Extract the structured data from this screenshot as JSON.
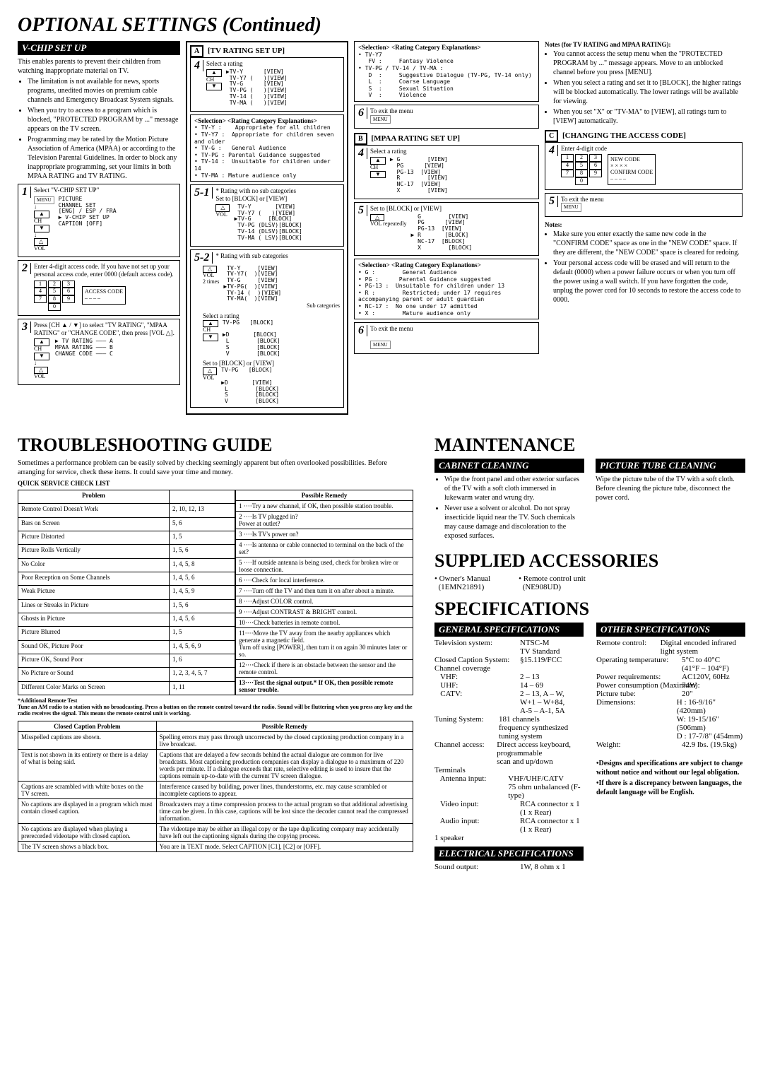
{
  "title_main": "OPTIONAL SETTINGS (Continued)",
  "vchip": {
    "heading": "V-CHIP SET UP",
    "intro1": "This enables parents to prevent their children from watching inappropriate material on TV.",
    "bullets": [
      "The limitation is not available for news, sports programs, unedited movies on premium cable channels and Emergency Broadcast System signals.",
      "When you try to access to a program which is blocked, \"PROTECTED PROGRAM by ...\" message appears on the TV screen.",
      "Programming may be rated by the Motion Picture Association of America (MPAA) or according to the Television Parental Guidelines. In order to block any inappropriate programming, set your limits in both MPAA RATING and TV RATING."
    ],
    "step1": "Select \"V-CHIP SET UP\"",
    "step1_menu": "PICTURE\nCHANNEL SET\n[ENG] / ESP / FRA\n▶ V-CHIP SET UP\nCAPTION [OFF]",
    "step2": "Enter 4-digit access code. If you have not set up your personal access code, enter 0000 (default access code).",
    "step2_label": "ACCESS CODE",
    "step3": "Press [CH ▲ / ▼] to select \"TV RATING\", \"MPAA RATING\" or \"CHANGE CODE\", then press [VOL △].",
    "step3_menu": "▶ TV RATING ——— A\nMPAA RATING ——— B\nCHANGE CODE ——— C"
  },
  "boxA": {
    "label": "A",
    "title": "[TV RATING SET UP]",
    "s4": "Select a rating",
    "s4_list": "▶TV-Y      [VIEW]\n TV-Y7 (   )[VIEW]\n TV-G      [VIEW]\n TV-PG (   )[VIEW]\n TV-14 (   )[VIEW]\n TV-MA (   )[VIEW]",
    "expl_head": "<Selection>  <Rating Category Explanations>",
    "expl": "• TV-Y :    Appropriate for all children\n• TV-Y7 :  Appropriate for children seven and older\n• TV-G :   General Audience\n• TV-PG : Parental Guidance suggested\n• TV-14 :  Unsuitable for children under 14\n• TV-MA : Mature audience only",
    "s51_label": "5-1",
    "s51": "* Rating with no sub categories\nSet to [BLOCK] or [VIEW]",
    "s51_list": " TV-Y       [VIEW]\n TV-Y7 (   )[VIEW]\n▶TV-G     [BLOCK]\n TV-PG (DLSV)[BLOCK]\n TV-14 (DLSV)[BLOCK]\n TV-MA ( LSV)[BLOCK]",
    "s52_label": "5-2",
    "s52": "* Rating with sub categories",
    "s52_a": "2 times",
    "s52_a_list": " TV-Y     [VIEW]\n TV-Y7(  )[VIEW]\n TV-G     [VIEW]\n▶TV-PG(  )[VIEW]\n TV-14 (  )[VIEW]\n TV-MA(  )[VIEW]",
    "s52_sub": "Sub categories",
    "s52_b": "Select a rating",
    "s52_b_list": "TV-PG   [BLOCK]\n\n▶D       [BLOCK]\n L        [BLOCK]\n S        [BLOCK]\n V        [BLOCK]",
    "s52_c": "Set to [BLOCK] or [VIEW]",
    "s52_c_list": "TV-PG   [BLOCK]\n\n▶D       [VIEW]\n L        [BLOCK]\n S        [BLOCK]\n V        [BLOCK]"
  },
  "boxA2": {
    "expl_head": "<Selection>  <Rating Category Explanations>",
    "expl": "• TV-Y7\n   FV :     Fantasy Violence\n• TV-PG / TV-14 / TV-MA :\n   D  :     Suggestive Dialogue (TV-PG, TV-14 only)\n   L  :     Coarse Language\n   S  :     Sexual Situation\n   V  :     Violence",
    "s6": "To exit the menu"
  },
  "boxB": {
    "label": "B",
    "title": "[MPAA RATING SET UP]",
    "s4": "Select a rating",
    "s4_list": "▶ G        [VIEW]\n  PG      [VIEW]\n  PG-13  [VIEW]\n  R        [VIEW]\n  NC-17  [VIEW]\n  X        [VIEW]",
    "s5": "Set to [BLOCK] or [VIEW]",
    "s5_note": "repeatedly",
    "s5_list": "  G        [VIEW]\n  PG      [VIEW]\n  PG-13  [VIEW]\n▶ R       [BLOCK]\n  NC-17  [BLOCK]\n  X        [BLOCK]",
    "expl_head": "<Selection>  <Rating Category Explanations>",
    "expl": "• G :        General Audience\n• PG :      Parental Guidance suggested\n• PG-13 :  Unsuitable for children under 13\n• R :        Restricted; under 17 requires accompanying parent or adult guardian\n• NC-17 :  No one under 17 admitted\n• X :        Mature audience only",
    "s6": "To exit the menu"
  },
  "boxC": {
    "label": "C",
    "title": "[CHANGING THE ACCESS CODE]",
    "s4": "Enter 4-digit code",
    "new_code": "NEW CODE",
    "confirm_code": "CONFIRM CODE",
    "s5": "To exit the menu"
  },
  "notes_tv": {
    "heading": "Notes (for TV RATING and MPAA RATING):",
    "items": [
      "You cannot access the setup menu when the \"PROTECTED PROGRAM by ...\" message appears. Move to an unblocked channel before you press [MENU].",
      "When you select a rating and set it to [BLOCK], the higher ratings will be blocked automatically. The lower ratings will be available for viewing.",
      "When you set \"X\" or \"TV-MA\" to [VIEW], all ratings turn to [VIEW] automatically."
    ]
  },
  "notes_code": {
    "heading": "Notes:",
    "items": [
      "Make sure you enter exactly the same new code in the \"CONFIRM CODE\" space as one in the \"NEW CODE\" space. If they are different, the \"NEW CODE\" space is cleared for redoing.",
      "Your personal access code will be erased and will return to the default (0000) when a power failure occurs or when you turn off the power using a wall switch. If you have forgotten the code, unplug the power cord for 10 seconds to restore the access code to 0000."
    ]
  },
  "trouble": {
    "heading": "TROUBLESHOOTING GUIDE",
    "intro": "Sometimes a performance problem can be easily solved by checking seemingly apparent but often overlooked possibilities. Before arranging for service, check these items. It could save your time and money.",
    "list_head": "QUICK SERVICE CHECK LIST",
    "th1": "Problem",
    "th2_empty": "",
    "th3": "Possible Remedy",
    "rows_left": [
      [
        "Remote Control Doesn't Work",
        "2, 10, 12, 13"
      ],
      [
        "Bars on Screen",
        "5, 6"
      ],
      [
        "Picture Distorted",
        "1, 5"
      ],
      [
        "Picture Rolls Vertically",
        "1, 5, 6"
      ],
      [
        "No Color",
        "1, 4, 5, 8"
      ],
      [
        "Poor Reception on Some Channels",
        "1, 4, 5, 6"
      ],
      [
        "Weak Picture",
        "1, 4, 5, 9"
      ],
      [
        "Lines or Streaks in Picture",
        "1, 5, 6"
      ],
      [
        "Ghosts in Picture",
        "1, 4, 5, 6"
      ],
      [
        "Picture Blurred",
        "1, 5"
      ],
      [
        "Sound OK, Picture Poor",
        "1, 4, 5, 6, 9"
      ],
      [
        "Picture OK, Sound Poor",
        "1, 6"
      ],
      [
        "No Picture or Sound",
        "1, 2, 3, 4, 5, 7"
      ],
      [
        "Different Color Marks on Screen",
        "1, 11"
      ]
    ],
    "remedies": [
      "1 ····Try a new channel, if OK, then possible station trouble.",
      "2 ····Is TV plugged in?\n       Power at outlet?",
      "3 ····Is TV's power on?",
      "4 ····Is antenna or cable connected to terminal on the back of the set?",
      "5 ····If outside antenna is being used, check for broken wire or loose connection.",
      "6 ····Check for local interference.",
      "7 ····Turn off the TV and then turn it on after about a minute.",
      "8 ····Adjust COLOR control.",
      "9 ····Adjust CONTRAST & BRIGHT control.",
      "10····Check batteries in remote control.",
      "11····Move the TV away from the nearby appliances which generate a magnetic field.\n       Turn off using [POWER], then turn it on again 30 minutes later or so.",
      "12····Check if there is an obstacle between the sensor and the remote control.",
      "13····Test the signal output.*  If OK, then possible remote sensor trouble."
    ],
    "foot_head": "*Additional Remote Test",
    "foot": "Tune an AM radio to a station with no broadcasting. Press a button on the remote control toward the radio. Sound will be fluttering when you press any key and the radio receives the signal. This means the remote control unit is working.",
    "cc_th1": "Closed Caption Problem",
    "cc_th2": "Possible Remedy",
    "cc_rows": [
      [
        "Misspelled captions are shown.",
        "Spelling errors may pass through uncorrected by the closed captioning production company in a live broadcast."
      ],
      [
        "Text is not shown in its entirety or there is a delay of what is being said.",
        "Captions that are delayed a few seconds behind the actual dialogue are common for live broadcasts. Most captioning production companies can display a dialogue to a maximum of 220 words per minute. If a dialogue exceeds that rate, selective editing is used to insure that the captions remain up-to-date with the current TV screen dialogue."
      ],
      [
        "Captions are scrambled with white boxes on the TV screen.",
        "Interference caused by building, power lines, thunderstorms, etc. may cause scrambled or incomplete captions to appear."
      ],
      [
        "No captions are displayed in a program which must contain closed caption.",
        "Broadcasters may  a time compression process to the actual program so that additional advertising time can be given. In this case, captions will be lost since the decoder cannot read the compressed information."
      ],
      [
        "No captions are displayed when playing a prerecorded videotape with closed caption.",
        "The videotape may be either an illegal copy or the tape duplicating company may accidentally have left out the captioning signals during the copying process."
      ],
      [
        "The TV screen shows a black box.",
        "You are in TEXT mode. Select CAPTION [C1], [C2] or [OFF]."
      ]
    ]
  },
  "maint": {
    "heading": "MAINTENANCE",
    "cab_head": "CABINET CLEANING",
    "cab": [
      "Wipe the front panel and other exterior surfaces of the TV with a soft cloth immersed in lukewarm water and wrung dry.",
      "Never use a solvent or alcohol. Do not spray insecticide liquid near the TV. Such chemicals may cause damage and discoloration to the exposed surfaces."
    ],
    "pic_head": "PICTURE TUBE CLEANING",
    "pic": "Wipe the picture tube of the TV with a soft cloth. Before cleaning the picture tube, disconnect the power cord."
  },
  "acc": {
    "heading": "SUPPLIED ACCESSORIES",
    "i1a": "Owner's Manual",
    "i1b": "(1EMN21891)",
    "i2a": "Remote control unit",
    "i2b": "(NE908UD)"
  },
  "specs": {
    "heading": "SPECIFICATIONS",
    "gen_head": "GENERAL SPECIFICATIONS",
    "gen": [
      [
        "Television system:",
        "NTSC-M\nTV Standard"
      ],
      [
        "Closed Caption System:",
        "§15.119/FCC"
      ],
      [
        "Channel coverage",
        ""
      ],
      [
        "   VHF:",
        "2 – 13"
      ],
      [
        "   UHF:",
        "14 – 69"
      ],
      [
        "   CATV:",
        "2 – 13, A – W,\nW+1 – W+84,\nA-5 – A-1, 5A"
      ],
      [
        "Tuning System:",
        "181 channels\nfrequency synthesized tuning system"
      ],
      [
        "Channel access:",
        "Direct access keyboard, programmable\nscan and up/down"
      ],
      [
        "Terminals",
        ""
      ],
      [
        "   Antenna input:",
        "VHF/UHF/CATV\n75 ohm unbalanced (F-type)"
      ],
      [
        "   Video input:",
        "RCA connector x 1\n(1 x Rear)"
      ],
      [
        "   Audio input:",
        "RCA connector x 1\n(1 x Rear)"
      ],
      [
        "1 speaker",
        ""
      ]
    ],
    "elec_head": "ELECTRICAL SPECIFICATIONS",
    "elec": [
      [
        "Sound output:",
        "1W, 8 ohm x 1"
      ]
    ],
    "other_head": "OTHER SPECIFICATIONS",
    "other": [
      [
        "Remote control:",
        "Digital encoded infrared light system"
      ],
      [
        "Operating temperature:",
        "5°C to 40°C\n(41°F – 104°F)"
      ],
      [
        "Power requirements:",
        "AC120V, 60Hz"
      ],
      [
        "Power consumption (Maximum):",
        "74W"
      ],
      [
        "Picture tube:",
        "20\""
      ],
      [
        "Dimensions:",
        "H :  16-9/16\" (420mm)\nW:  19-15/16\" (506mm)\nD :  17-7/8\"   (454mm)"
      ],
      [
        "Weight:",
        "42.9 lbs. (19.5kg)"
      ]
    ],
    "foot1": "•Designs and specifications are subject to change without notice and without our legal obligation.",
    "foot2": "•If there is a discrepancy between languages, the default language will be English."
  },
  "btn_menu": "MENU",
  "btn_ch": "CH",
  "btn_vol": "VOL"
}
